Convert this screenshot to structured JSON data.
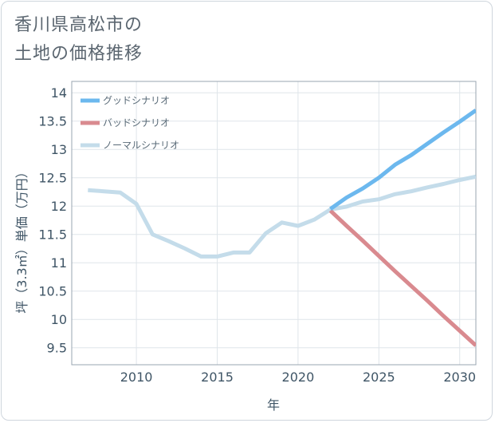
{
  "title_lines": [
    "香川県高松市の",
    "土地の価格推移"
  ],
  "chart_data": {
    "type": "line",
    "title": "香川県高松市の土地の価格推移",
    "xlabel": "年",
    "ylabel": "坪（3.3㎡）単価（万円）",
    "xlim": [
      2006,
      2031
    ],
    "ylim": [
      9.2,
      14.2
    ],
    "xticks": [
      2010,
      2015,
      2020,
      2025,
      2030
    ],
    "yticks": [
      9.5,
      10,
      10.5,
      11,
      11.5,
      12,
      12.5,
      13,
      13.5,
      14
    ],
    "xtick_labels": [
      "2010",
      "2015",
      "2020",
      "2025",
      "2030"
    ],
    "ytick_labels": [
      "9.5",
      "10",
      "10.5",
      "11",
      "11.5",
      "12",
      "12.5",
      "13",
      "13.5",
      "14"
    ],
    "legend_position": "top-left",
    "series": [
      {
        "name": "グッドシナリオ",
        "color": "#6cb8ee",
        "x": [
          2022,
          2023,
          2024,
          2025,
          2026,
          2027,
          2028,
          2029,
          2030,
          2031
        ],
        "y": [
          11.95,
          12.15,
          12.31,
          12.5,
          12.73,
          12.9,
          13.1,
          13.3,
          13.49,
          13.69
        ]
      },
      {
        "name": "バッドシナリオ",
        "color": "#d98a8f",
        "x": [
          2022,
          2023,
          2024,
          2025,
          2026,
          2027,
          2028,
          2029,
          2030,
          2031
        ],
        "y": [
          11.92,
          11.65,
          11.39,
          11.12,
          10.85,
          10.59,
          10.33,
          10.06,
          9.8,
          9.54
        ]
      },
      {
        "name": "ノーマルシナリオ",
        "color": "#c4dcea",
        "x": [
          2007,
          2008,
          2009,
          2010,
          2011,
          2012,
          2013,
          2014,
          2015,
          2016,
          2017,
          2018,
          2019,
          2020,
          2021,
          2022,
          2023,
          2024,
          2025,
          2026,
          2027,
          2028,
          2029,
          2030,
          2031
        ],
        "y": [
          12.28,
          12.26,
          12.24,
          12.04,
          11.5,
          11.38,
          11.25,
          11.11,
          11.11,
          11.18,
          11.18,
          11.52,
          11.71,
          11.65,
          11.76,
          11.94,
          11.99,
          12.08,
          12.12,
          12.21,
          12.26,
          12.33,
          12.39,
          12.46,
          12.52
        ]
      }
    ]
  }
}
